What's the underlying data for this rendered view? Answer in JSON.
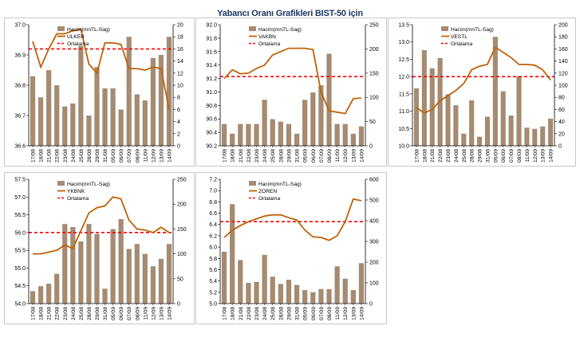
{
  "page": {
    "title": "Yabancı Oranı Grafikleri BIST-50 için"
  },
  "colors": {
    "bar": "#a58b72",
    "line": "#c0620a",
    "average": "#ff0000",
    "axis": "#000000"
  },
  "chart_data": [
    {
      "type": "bar+line",
      "title": "",
      "legend": {
        "bar": "Hacim(mnTL-Sag)",
        "line": "ULKER",
        "avg": "Ortalama",
        "placement": "top-left"
      },
      "categories": [
        "17/08",
        "18/08",
        "21/08",
        "22/08",
        "23/08",
        "24/08",
        "25/08",
        "28/08",
        "29/08",
        "31/08",
        "05/09",
        "06/09",
        "07/09",
        "08/09",
        "11/09",
        "12/09",
        "13/09",
        "14/09"
      ],
      "bars": [
        11.5,
        8,
        12.5,
        10,
        6.5,
        7,
        16.5,
        5,
        13,
        9.5,
        9.5,
        6,
        18,
        8.5,
        7.5,
        14.5,
        15,
        18
      ],
      "line": [
        36.945,
        36.86,
        36.92,
        36.97,
        36.97,
        36.98,
        36.985,
        36.87,
        36.84,
        36.94,
        36.94,
        36.935,
        36.855,
        36.855,
        36.85,
        36.86,
        36.855,
        36.72
      ],
      "average": 36.92,
      "yleft": {
        "min": 36.6,
        "max": 37.0,
        "ticks": [
          "36.6",
          "36.7",
          "36.8",
          "36.9",
          "37.0"
        ]
      },
      "yright": {
        "min": 0,
        "max": 20,
        "ticks": [
          "0",
          "2",
          "4",
          "6",
          "8",
          "10",
          "12",
          "14",
          "16",
          "18",
          "20"
        ]
      },
      "grid": false
    },
    {
      "type": "bar+line",
      "title": "",
      "legend": {
        "bar": "Hacim(mnTL-Sag)",
        "line": "VAKBN",
        "avg": "Ortalama",
        "placement": "top-left"
      },
      "categories": [
        "17/08",
        "18/08",
        "21/08",
        "22/08",
        "23/08",
        "24/08",
        "25/08",
        "28/08",
        "29/08",
        "31/08",
        "05/09",
        "06/09",
        "07/09",
        "08/09",
        "11/09",
        "12/09",
        "13/09",
        "14/09"
      ],
      "bars": [
        45,
        25,
        45,
        45,
        45,
        95,
        55,
        50,
        45,
        25,
        95,
        110,
        125,
        190,
        45,
        45,
        25,
        40
      ],
      "line": [
        91.2,
        91.33,
        91.27,
        91.28,
        91.35,
        91.4,
        91.55,
        91.6,
        91.65,
        91.65,
        91.65,
        91.63,
        91.0,
        90.72,
        90.7,
        90.68,
        90.9,
        90.91
      ],
      "average": 91.23,
      "yleft": {
        "min": 90.2,
        "max": 92.0,
        "ticks": [
          "90.2",
          "90.4",
          "90.6",
          "90.8",
          "91.0",
          "91.2",
          "91.4",
          "91.6",
          "91.8",
          "92.0"
        ]
      },
      "yright": {
        "min": 0,
        "max": 250,
        "ticks": [
          "0",
          "50",
          "100",
          "150",
          "200",
          "250"
        ]
      },
      "grid": false
    },
    {
      "type": "bar+line",
      "title": "",
      "legend": {
        "bar": "Hacim(mnTL-Sag)",
        "line": "VESTL",
        "avg": "Ortalama",
        "placement": "top-left"
      },
      "categories": [
        "17/08",
        "18/08",
        "21/08",
        "22/08",
        "23/08",
        "24/08",
        "25/08",
        "28/08",
        "29/08",
        "31/08",
        "05/09",
        "06/09",
        "07/09",
        "08/09",
        "11/09",
        "12/09",
        "13/09",
        "14/09"
      ],
      "bars": [
        95,
        158,
        128,
        145,
        85,
        67,
        20,
        75,
        15,
        48,
        180,
        90,
        50,
        115,
        30,
        28,
        32,
        45
      ],
      "line": [
        11.1,
        10.95,
        11.05,
        11.3,
        11.45,
        11.6,
        11.8,
        12.2,
        12.3,
        12.35,
        12.85,
        12.7,
        12.55,
        12.35,
        12.35,
        12.33,
        12.2,
        11.9
      ],
      "average": 12.0,
      "yleft": {
        "min": 10.0,
        "max": 13.5,
        "ticks": [
          "10.0",
          "10.5",
          "11.0",
          "11.5",
          "12.0",
          "12.5",
          "13.0",
          "13.5"
        ]
      },
      "yright": {
        "min": 0,
        "max": 200,
        "ticks": [
          "0",
          "20",
          "40",
          "60",
          "80",
          "100",
          "120",
          "140",
          "160",
          "180",
          "200"
        ]
      },
      "grid": false
    },
    {
      "type": "bar+line",
      "title": "",
      "legend": {
        "bar": "Hacim(mnTL-Sag)",
        "line": "YKBNK",
        "avg": "Ortalama",
        "placement": "top-left"
      },
      "categories": [
        "17/08",
        "18/08",
        "21/08",
        "22/08",
        "23/08",
        "24/08",
        "25/08",
        "28/08",
        "29/08",
        "31/08",
        "05/09",
        "06/09",
        "07/09",
        "08/09",
        "11/09",
        "12/09",
        "13/09",
        "14/09"
      ],
      "bars": [
        25,
        35,
        40,
        60,
        160,
        154,
        125,
        160,
        140,
        30,
        150,
        170,
        110,
        120,
        100,
        75,
        90,
        120
      ],
      "line": [
        55.4,
        55.4,
        55.45,
        55.5,
        55.65,
        55.55,
        56.05,
        56.55,
        56.7,
        56.75,
        57.0,
        56.95,
        56.35,
        56.1,
        56.07,
        56.0,
        56.15,
        56.0
      ],
      "average": 56.0,
      "yleft": {
        "min": 54.0,
        "max": 57.5,
        "ticks": [
          "54.0",
          "54.5",
          "55.0",
          "55.5",
          "56.0",
          "56.5",
          "57.0",
          "57.5"
        ]
      },
      "yright": {
        "min": 0,
        "max": 250,
        "ticks": [
          "0",
          "50",
          "100",
          "150",
          "200",
          "250"
        ]
      },
      "grid": false
    },
    {
      "type": "bar+line",
      "title": "",
      "legend": {
        "bar": "Hacim(mnTL-Sag)",
        "line": "ZOREN",
        "avg": "Ortalama",
        "placement": "top-left"
      },
      "categories": [
        "17/08",
        "18/08",
        "21/08",
        "22/08",
        "23/08",
        "24/08",
        "25/08",
        "28/08",
        "29/08",
        "31/08",
        "05/09",
        "06/09",
        "07/09",
        "08/09",
        "11/09",
        "12/09",
        "13/09",
        "14/09"
      ],
      "bars": [
        250,
        480,
        210,
        100,
        105,
        235,
        130,
        95,
        115,
        90,
        65,
        55,
        70,
        70,
        180,
        120,
        65,
        195
      ],
      "line": [
        6.17,
        6.3,
        6.38,
        6.45,
        6.5,
        6.55,
        6.57,
        6.57,
        6.52,
        6.48,
        6.3,
        6.18,
        6.17,
        6.12,
        6.2,
        6.45,
        6.85,
        6.82
      ],
      "average": 6.45,
      "yleft": {
        "min": 5.0,
        "max": 7.2,
        "ticks": [
          "5.0",
          "5.2",
          "5.4",
          "5.6",
          "5.8",
          "6.0",
          "6.2",
          "6.4",
          "6.6",
          "6.8",
          "7.0",
          "7.2"
        ]
      },
      "yright": {
        "min": 0,
        "max": 600,
        "ticks": [
          "0",
          "100",
          "200",
          "300",
          "400",
          "500",
          "600"
        ]
      },
      "grid": false
    }
  ]
}
